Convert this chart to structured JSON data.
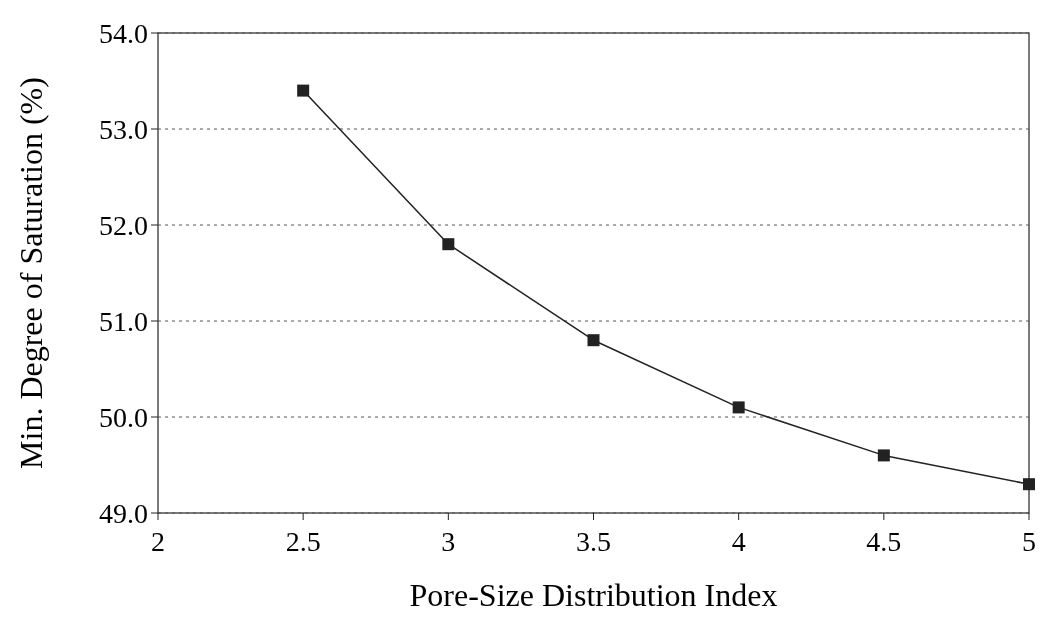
{
  "chart_data": {
    "type": "line",
    "xlabel": "Pore-Size Distribution Index",
    "ylabel": "Min. Degree of Saturation (%)",
    "x": [
      2.5,
      3,
      3.5,
      4,
      4.5,
      5
    ],
    "series": [
      {
        "color": "#222222",
        "values": [
          53.4,
          51.8,
          50.8,
          50.1,
          49.6,
          49.3
        ]
      }
    ],
    "xlim": [
      2,
      5
    ],
    "xticks": [
      2,
      2.5,
      3,
      3.5,
      4,
      4.5,
      5
    ],
    "ylim": [
      49,
      54
    ],
    "yticks": [
      {
        "value": 49,
        "label": "49.0"
      },
      {
        "value": 50,
        "label": "50.0"
      },
      {
        "value": 51,
        "label": "51.0"
      },
      {
        "value": 52,
        "label": "52.0"
      },
      {
        "value": 53,
        "label": "53.0"
      },
      {
        "value": 54,
        "label": "54.0"
      }
    ],
    "grid": "y",
    "marker": "square",
    "line_style": "solid"
  }
}
